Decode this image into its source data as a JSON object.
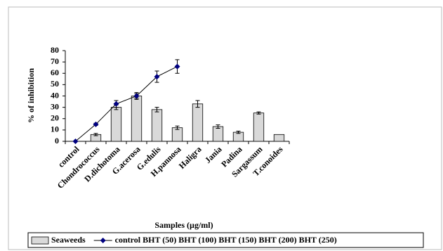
{
  "chart_data": {
    "type": "combo",
    "y_label": "% of inhibition",
    "x_label": "Samples (µg/ml)",
    "categories": [
      "control",
      "Chondrococcus",
      "D.dichotoma",
      "G.acerosa",
      "G.edulis",
      "H.pannosa",
      "Haligra",
      "Jania",
      "Padina",
      "Sargassum",
      "T.conoides"
    ],
    "series": [
      {
        "name": "Seaweeds",
        "type": "bar",
        "color": "#d9d9d9",
        "values": [
          0,
          6,
          30,
          40,
          28,
          12,
          33,
          13,
          8,
          25,
          6
        ],
        "errors": [
          null,
          1,
          2,
          2,
          2,
          1.5,
          3,
          1.5,
          1,
          1,
          null
        ]
      },
      {
        "name": "control BHT (50) BHT (100) BHT (150) BHT (200) BHT (250)",
        "type": "line",
        "color": "#000080",
        "values": [
          0,
          15,
          33,
          40,
          57,
          66,
          null,
          null,
          null,
          null,
          null
        ],
        "errors": [
          null,
          1,
          3,
          3,
          5,
          6,
          null,
          null,
          null,
          null,
          null
        ]
      }
    ],
    "ylim": [
      0,
      80
    ],
    "yticks": [
      0,
      10,
      20,
      30,
      40,
      50,
      60,
      70,
      80
    ]
  }
}
